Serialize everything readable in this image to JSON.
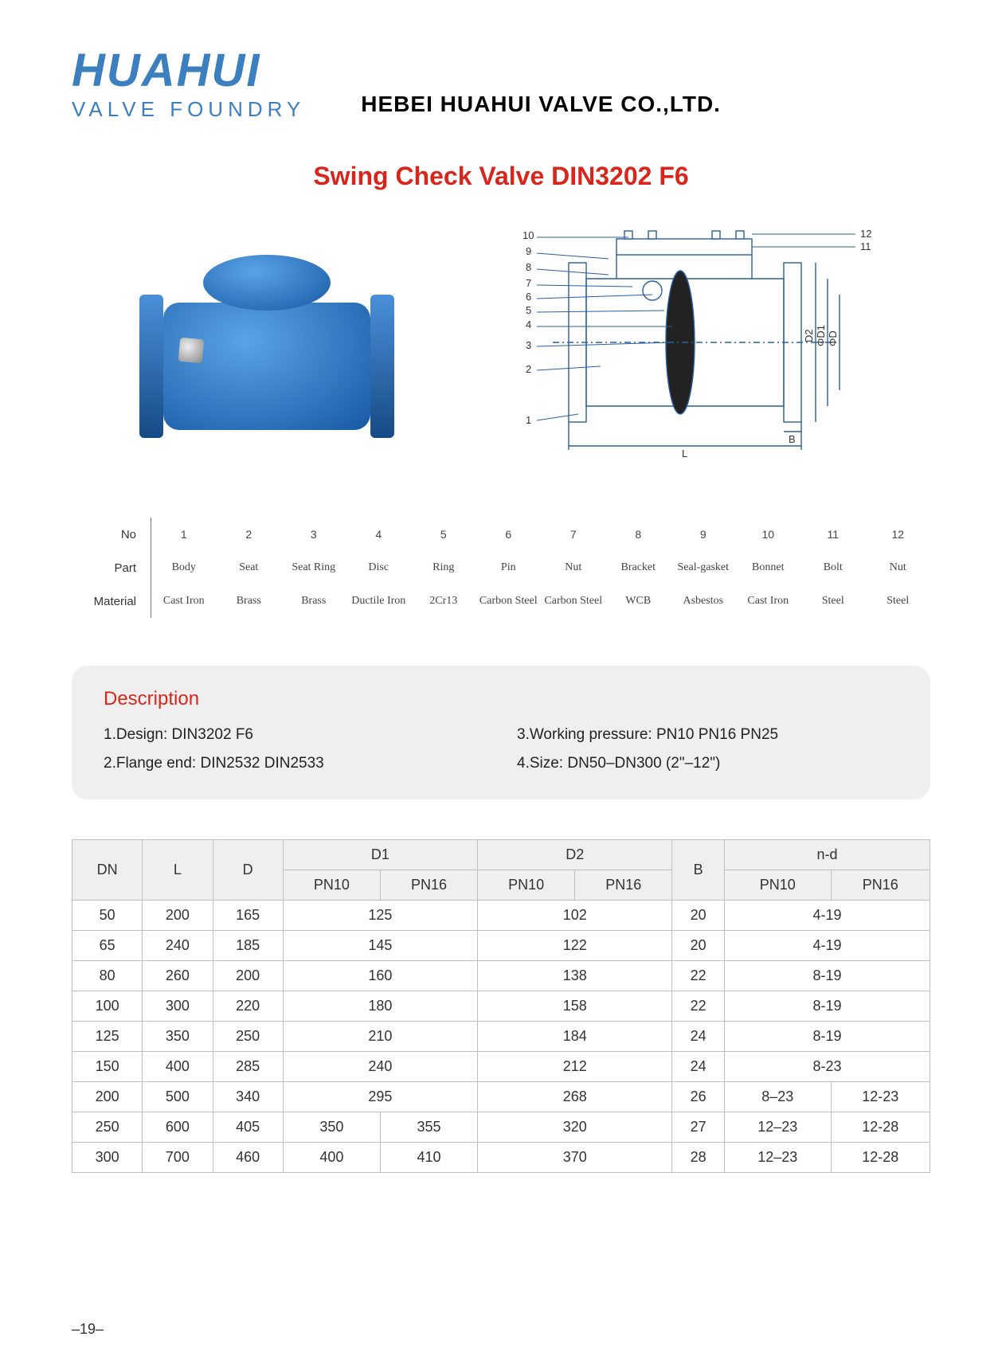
{
  "header": {
    "logo_main": "HUAHUI",
    "logo_sub": "VALVE FOUNDRY",
    "company": "HEBEI HUAHUI VALVE CO.,LTD."
  },
  "title": "Swing Check Valve DIN3202 F6",
  "colors": {
    "brand_blue": "#3b7fbf",
    "title_red": "#d9261c",
    "valve_blue_light": "#5aa3e8",
    "valve_blue_dark": "#1759a3",
    "box_bg": "#efefef",
    "border": "#bfbfbf",
    "drawing_line": "#2a5fa0"
  },
  "drawing_labels": {
    "left_numbers": [
      "10",
      "9",
      "8",
      "7",
      "6",
      "5",
      "4",
      "3",
      "2",
      "1"
    ],
    "right_numbers": [
      "12",
      "11"
    ],
    "dims": [
      "D2",
      "ΦD1",
      "ΦD",
      "B",
      "L"
    ]
  },
  "parts": {
    "row_headers": [
      "No",
      "Part",
      "Material"
    ],
    "numbers": [
      "1",
      "2",
      "3",
      "4",
      "5",
      "6",
      "7",
      "8",
      "9",
      "10",
      "11",
      "12"
    ],
    "names": [
      "Body",
      "Seat",
      "Seat Ring",
      "Disc",
      "Ring",
      "Pin",
      "Nut",
      "Bracket",
      "Seal-gasket",
      "Bonnet",
      "Bolt",
      "Nut"
    ],
    "materials": [
      "Cast Iron",
      "Brass",
      "Brass",
      "Ductile Iron",
      "2Cr13",
      "Carbon Steel",
      "Carbon Steel",
      "WCB",
      "Asbestos",
      "Cast Iron",
      "Steel",
      "Steel"
    ]
  },
  "description": {
    "title": "Description",
    "items": [
      "1.Design: DIN3202 F6",
      "3.Working pressure: PN10 PN16 PN25",
      "2.Flange end:  DIN2532 DIN2533",
      "4.Size: DN50–DN300 (2\"–12\")"
    ]
  },
  "dim_table": {
    "head_top": [
      "DN",
      "L",
      "D",
      "D1",
      "D2",
      "B",
      "n-d"
    ],
    "head_sub": [
      "PN10",
      "PN16",
      "PN10",
      "PN16",
      "PN10",
      "PN16"
    ],
    "rows": [
      {
        "dn": "50",
        "l": "200",
        "d": "165",
        "d1": {
          "span": true,
          "val": "125"
        },
        "d2": {
          "span": true,
          "val": "102"
        },
        "b": "20",
        "nd": {
          "span": true,
          "val": "4-19"
        }
      },
      {
        "dn": "65",
        "l": "240",
        "d": "185",
        "d1": {
          "span": true,
          "val": "145"
        },
        "d2": {
          "span": true,
          "val": "122"
        },
        "b": "20",
        "nd": {
          "span": true,
          "val": "4-19"
        }
      },
      {
        "dn": "80",
        "l": "260",
        "d": "200",
        "d1": {
          "span": true,
          "val": "160"
        },
        "d2": {
          "span": true,
          "val": "138"
        },
        "b": "22",
        "nd": {
          "span": true,
          "val": "8-19"
        }
      },
      {
        "dn": "100",
        "l": "300",
        "d": "220",
        "d1": {
          "span": true,
          "val": "180"
        },
        "d2": {
          "span": true,
          "val": "158"
        },
        "b": "22",
        "nd": {
          "span": true,
          "val": "8-19"
        }
      },
      {
        "dn": "125",
        "l": "350",
        "d": "250",
        "d1": {
          "span": true,
          "val": "210"
        },
        "d2": {
          "span": true,
          "val": "184"
        },
        "b": "24",
        "nd": {
          "span": true,
          "val": "8-19"
        }
      },
      {
        "dn": "150",
        "l": "400",
        "d": "285",
        "d1": {
          "span": true,
          "val": "240"
        },
        "d2": {
          "span": true,
          "val": "212"
        },
        "b": "24",
        "nd": {
          "span": true,
          "val": "8-23"
        }
      },
      {
        "dn": "200",
        "l": "500",
        "d": "340",
        "d1": {
          "span": true,
          "val": "295"
        },
        "d2": {
          "span": true,
          "val": "268"
        },
        "b": "26",
        "nd": {
          "span": false,
          "pn10": "8–23",
          "pn16": "12-23"
        }
      },
      {
        "dn": "250",
        "l": "600",
        "d": "405",
        "d1": {
          "span": false,
          "pn10": "350",
          "pn16": "355"
        },
        "d2": {
          "span": true,
          "val": "320"
        },
        "b": "27",
        "nd": {
          "span": false,
          "pn10": "12–23",
          "pn16": "12-28"
        }
      },
      {
        "dn": "300",
        "l": "700",
        "d": "460",
        "d1": {
          "span": false,
          "pn10": "400",
          "pn16": "410"
        },
        "d2": {
          "span": true,
          "val": "370"
        },
        "b": "28",
        "nd": {
          "span": false,
          "pn10": "12–23",
          "pn16": "12-28"
        }
      }
    ]
  },
  "page_number": "–19–"
}
